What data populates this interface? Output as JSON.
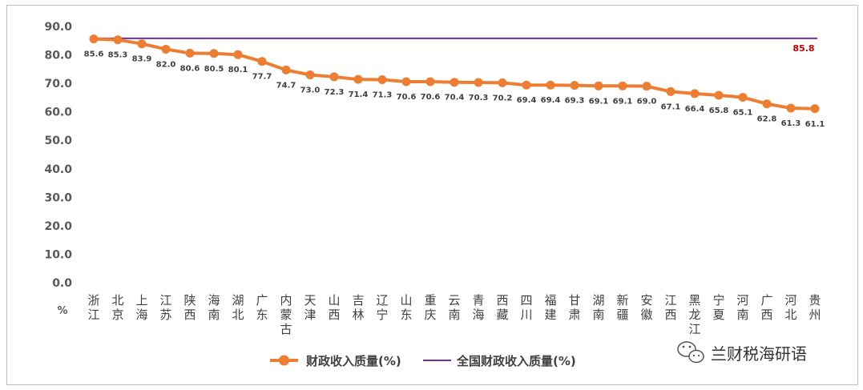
{
  "chart_data": {
    "type": "line",
    "categories": [
      "浙江",
      "北京",
      "上海",
      "江苏",
      "陕西",
      "海南",
      "湖北",
      "广东",
      "内蒙古",
      "天津",
      "山西",
      "吉林",
      "辽宁",
      "山东",
      "重庆",
      "云南",
      "青海",
      "西藏",
      "四川",
      "福建",
      "甘肃",
      "湖南",
      "新疆",
      "安徽",
      "江西",
      "黑龙江",
      "宁夏",
      "河南",
      "广西",
      "河北",
      "贵州"
    ],
    "series": [
      {
        "name": "财政收入质量(%)",
        "color": "#ed7d31",
        "values": [
          85.6,
          85.3,
          83.9,
          82.0,
          80.6,
          80.5,
          80.1,
          77.7,
          74.7,
          73.0,
          72.3,
          71.4,
          71.3,
          70.6,
          70.6,
          70.4,
          70.3,
          70.2,
          69.4,
          69.4,
          69.3,
          69.1,
          69.1,
          69.0,
          67.1,
          66.4,
          65.8,
          65.1,
          62.8,
          61.3,
          61.1
        ],
        "labels": [
          "85.6",
          "85.3",
          "83.9",
          "82.0",
          "80.6",
          "80.5",
          "80.1",
          "77.7",
          "74.7",
          "73.0",
          "72.3",
          "71.4",
          "71.3",
          "70.6",
          "70.6",
          "70.4",
          "70.3",
          "70.2",
          "69.4",
          "69.4",
          "69.3",
          "69.1",
          "69.1",
          "69.0",
          "67.1",
          "66.4",
          "65.8",
          "65.1",
          "62.8",
          "61.3",
          "61.1"
        ]
      },
      {
        "name": "全国财政收入质量(%)",
        "color": "#7030a0",
        "value": 85.8,
        "label": "85.8",
        "label_color": "#c00000"
      }
    ],
    "yticks": [
      "0.0",
      "10.0",
      "20.0",
      "30.0",
      "40.0",
      "50.0",
      "60.0",
      "70.0",
      "80.0",
      "90.0"
    ],
    "ylim": [
      0,
      90
    ],
    "unit": "%",
    "legend": "bottom",
    "grid": false
  },
  "watermark": {
    "text": "兰财税海研语",
    "icon": "wechat-icon"
  }
}
